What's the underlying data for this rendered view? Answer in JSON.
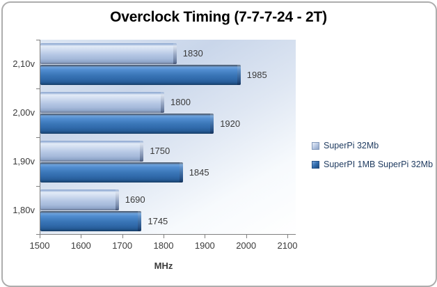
{
  "chart_data": {
    "type": "bar",
    "orientation": "horizontal",
    "title": "Overclock Timing (7-7-7-24 - 2T)",
    "categories": [
      "2,10v",
      "2,00v",
      "1,90v",
      "1,80v"
    ],
    "series": [
      {
        "name": "SuperPi 32Mb",
        "values": [
          1830,
          1800,
          1750,
          1690
        ],
        "color": "#b5c7e4"
      },
      {
        "name": "SuperPI 1MB SuperPi 32Mb",
        "values": [
          1985,
          1920,
          1845,
          1745
        ],
        "color": "#336fb1"
      }
    ],
    "xlabel": "MHz",
    "xlim": [
      1500,
      2100
    ],
    "xticks": [
      1500,
      1600,
      1700,
      1800,
      1900,
      2000,
      2100
    ],
    "grid": false,
    "value_labels_shown": true,
    "legend_position": "right",
    "colors": {
      "window_border": "#adadad",
      "axis_line": "#7f7f7f",
      "text": "#3a3a3a",
      "legend_text": "#1e3a5f",
      "plot_gradient_top": "#c9d6ea",
      "plot_gradient_bottom": "#ffffff"
    }
  }
}
